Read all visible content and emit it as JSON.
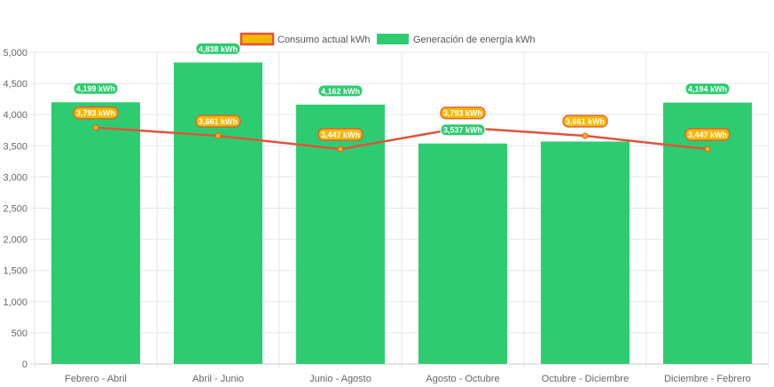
{
  "chart_data": {
    "type": "bar",
    "categories": [
      "Febrero - Abril",
      "Abril - Junio",
      "Junio - Agosto",
      "Agosto - Octubre",
      "Octubre - Diciembre",
      "Diciembre - Febrero"
    ],
    "series": [
      {
        "name": "Consumo actual kWh",
        "type": "line",
        "values": [
          3793,
          3661,
          3447,
          3793,
          3661,
          3447
        ],
        "labels": [
          "3,793 kWh",
          "3,661 kWh",
          "3,447 kWh",
          "3,793 kWh",
          "3,661 kWh",
          "3,447 kWh"
        ],
        "color": "#e0533c",
        "label_color": "#f5b800"
      },
      {
        "name": "Generación de energía kWh",
        "type": "bar",
        "values": [
          4199,
          4838,
          4162,
          3537,
          3569,
          4194
        ],
        "labels": [
          "4,199 kWh",
          "4,838 kWh",
          "4,162 kWh",
          "3,537 kWh",
          "",
          "4,194 kWh"
        ],
        "color": "#2ecc71"
      }
    ],
    "ylim": [
      0,
      5000
    ],
    "yticks": [
      0,
      500,
      1000,
      1500,
      2000,
      2500,
      3000,
      3500,
      4000,
      4500,
      5000
    ],
    "ytick_labels": [
      "0",
      "500",
      "1,000",
      "1,500",
      "2,000",
      "2,500",
      "3,000",
      "3,500",
      "4,000",
      "4,500",
      "5,000"
    ],
    "grid": true,
    "legend_position": "top-center"
  },
  "colors": {
    "grid": "#e6e6e6",
    "axis": "#cccccc",
    "legend_line_fill": "#f5b800",
    "legend_line_border": "#e0533c"
  }
}
